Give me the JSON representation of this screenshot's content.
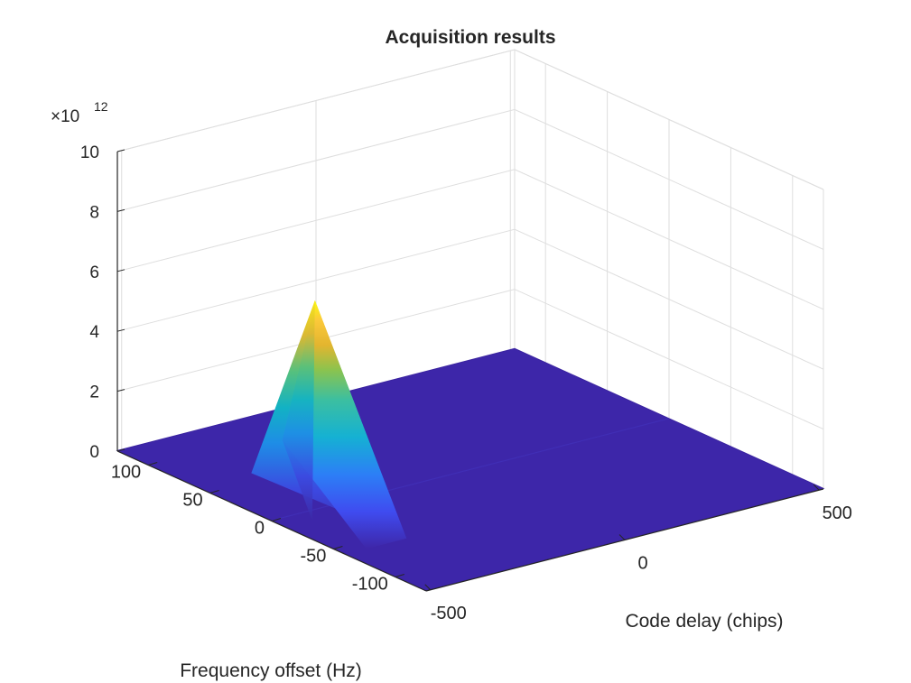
{
  "chart_data": {
    "type": "surface",
    "title": "Acquisition results",
    "xlabel": "Code delay (chips)",
    "ylabel": "Frequency offset (Hz)",
    "zlabel": "",
    "z_exponent_base": "×10",
    "z_exponent_power": "12",
    "xlim": [
      -511,
      511
    ],
    "ylim": [
      -125,
      125
    ],
    "zlim": [
      0,
      10
    ],
    "xticks": [
      -500,
      0,
      500
    ],
    "xtick_labels": [
      "-500",
      "0",
      "500"
    ],
    "yticks": [
      -100,
      -50,
      0,
      50,
      100
    ],
    "ytick_labels": [
      "-100",
      "-50",
      "0",
      "50",
      "100"
    ],
    "zticks": [
      0,
      2,
      4,
      6,
      8,
      10
    ],
    "ztick_labels": [
      "0",
      "2",
      "4",
      "6",
      "8",
      "10"
    ],
    "grid": true,
    "colormap": "parula",
    "noise_floor": 0.02,
    "peak": {
      "code_delay": -400,
      "frequency_offset": 0,
      "value": 7.0
    }
  }
}
